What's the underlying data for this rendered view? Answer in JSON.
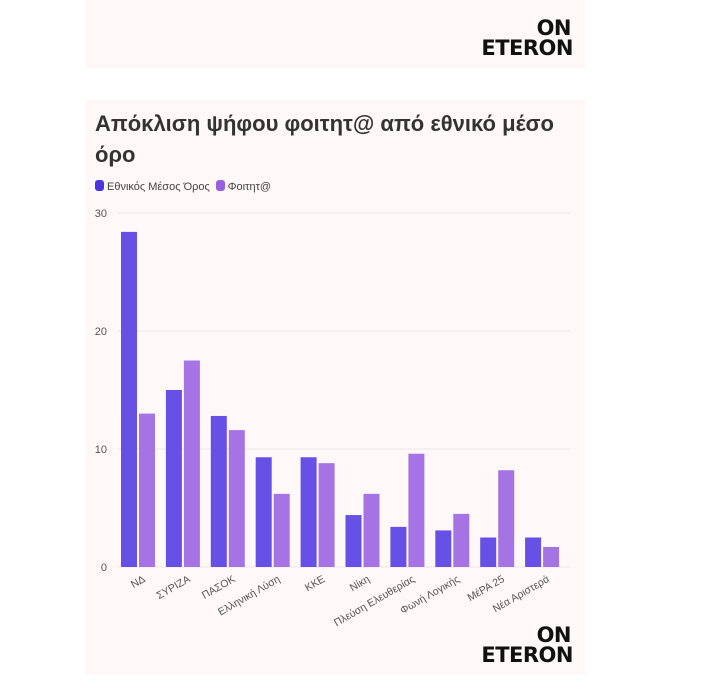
{
  "logo_text": [
    "ON",
    "ETERON"
  ],
  "chart_data": {
    "type": "bar",
    "title": "Απόκλιση ψήφου φοιτητ@ από εθνικό μέσο όρο",
    "categories": [
      "ΝΔ",
      "ΣΥΡΙΖΑ",
      "ΠΑΣΟΚ",
      "Ελληνική Λύση",
      "ΚΚΕ",
      "Νίκη",
      "Πλεύση Ελευθερίας",
      "Φωνή Λογικής",
      "ΜέΡΑ 25",
      "Νέα Αριστερά"
    ],
    "series": [
      {
        "name": "Εθνικός Μέσος Όρος",
        "color": "#6650e6",
        "values": [
          28.4,
          15.0,
          12.8,
          9.3,
          9.3,
          4.4,
          3.4,
          3.1,
          2.5,
          2.5
        ]
      },
      {
        "name": "Φοιτητ@",
        "color": "#a573e3",
        "values": [
          13.0,
          17.5,
          11.6,
          6.2,
          8.8,
          6.2,
          9.6,
          4.5,
          8.2,
          1.7
        ]
      }
    ],
    "ylim": [
      0,
      30
    ],
    "yticks": [
      0,
      10,
      20,
      30
    ],
    "grid": true,
    "legend": "top-left"
  }
}
